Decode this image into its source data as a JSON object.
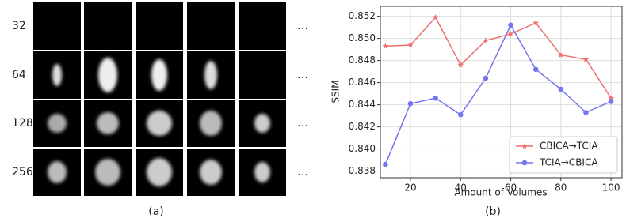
{
  "panel_a": {
    "row_labels": [
      "32",
      "64",
      "128",
      "256"
    ],
    "ellipsis": "…",
    "caption": "(a)"
  },
  "chart_data": {
    "type": "line",
    "caption": "(b)",
    "x_label": "Amount of Volumes",
    "y_label": "SSIM",
    "x": [
      10,
      20,
      30,
      40,
      50,
      60,
      70,
      80,
      90,
      100
    ],
    "series": [
      {
        "name": "CBICA→TCIA",
        "color": "#f07070",
        "marker": "star",
        "values": [
          0.8493,
          0.8494,
          0.8519,
          0.8476,
          0.8498,
          0.8504,
          0.8514,
          0.8485,
          0.8481,
          0.8446
        ]
      },
      {
        "name": "TCIA→CBICA",
        "color": "#7575f0",
        "marker": "circle",
        "values": [
          0.8386,
          0.8441,
          0.8446,
          0.8431,
          0.8464,
          0.8512,
          0.8472,
          0.8454,
          0.8433,
          0.8443
        ]
      }
    ],
    "xlim": [
      8,
      104.4
    ],
    "ylim": [
      0.8374,
      0.8529
    ],
    "xticks": [
      20,
      40,
      60,
      80,
      100
    ],
    "yticks": [
      0.838,
      {
        "value": 0.84,
        "label": "0.840"
      },
      0.842,
      0.844,
      0.846,
      0.848,
      {
        "value": 0.85,
        "label": "0.850"
      },
      0.852
    ],
    "grid": true,
    "legend": "lower right"
  }
}
